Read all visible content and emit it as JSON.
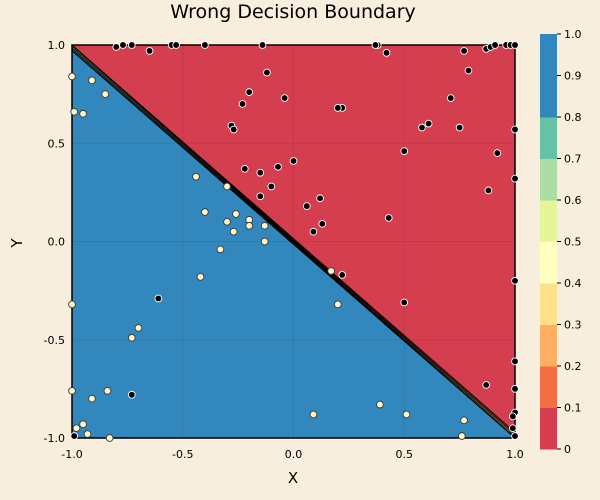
{
  "chart_data": {
    "type": "contour",
    "title": "Wrong Decision Boundary",
    "xlabel": "X",
    "ylabel": "Y",
    "xlim": [
      -1.0,
      1.0
    ],
    "ylim": [
      -1.0,
      1.0
    ],
    "x_ticks": [
      -1.0,
      -0.5,
      0.0,
      0.5,
      1.0
    ],
    "y_ticks": [
      -1.0,
      -0.5,
      0.0,
      0.5,
      1.0
    ],
    "x_tick_labels": [
      "-1.0",
      "-0.5",
      "0.0",
      "0.5",
      "1.0"
    ],
    "y_tick_labels": [
      "-1.0",
      "-0.5",
      "0.0",
      "0.5",
      "1.0"
    ],
    "grid": true,
    "boundary": "x + y = 0",
    "colorbar": {
      "min": 0,
      "max": 1,
      "ticks": [
        0,
        0.1,
        0.2,
        0.3,
        0.4,
        0.5,
        0.6,
        0.7,
        0.8,
        0.9,
        1.0
      ],
      "tick_labels": [
        "0",
        "0.1",
        "0.2",
        "0.3",
        "0.4",
        "0.5",
        "0.6",
        "0.7",
        "0.8",
        "0.9",
        "1.0"
      ],
      "colors": [
        "#d53e4f",
        "#f46d43",
        "#fdae61",
        "#fee08b",
        "#ffffbf",
        "#e6f598",
        "#abdda4",
        "#66c2a5",
        "#3288bd",
        "#3288bd"
      ]
    },
    "region_colors": {
      "high": "#3288bd",
      "low": "#d53e4f"
    },
    "series": [
      {
        "marker_color": "#000000",
        "points": [
          [
            -0.8,
            0.99
          ],
          [
            -0.77,
            1.0
          ],
          [
            -0.73,
            1.0
          ],
          [
            -0.65,
            0.97
          ],
          [
            -0.55,
            1.0
          ],
          [
            -0.53,
            1.0
          ],
          [
            -0.4,
            1.0
          ],
          [
            -0.14,
            1.0
          ],
          [
            0.38,
            1.0
          ],
          [
            0.37,
            1.0
          ],
          [
            0.42,
            0.96
          ],
          [
            0.77,
            0.97
          ],
          [
            0.87,
            0.98
          ],
          [
            0.89,
            0.99
          ],
          [
            0.91,
            1.0
          ],
          [
            0.96,
            1.0
          ],
          [
            0.98,
            1.0
          ],
          [
            1.0,
            1.0
          ],
          [
            0.79,
            0.87
          ],
          [
            -0.12,
            0.86
          ],
          [
            -0.2,
            0.76
          ],
          [
            -0.04,
            0.73
          ],
          [
            0.22,
            0.68
          ],
          [
            0.2,
            0.68
          ],
          [
            0.71,
            0.73
          ],
          [
            -0.23,
            0.7
          ],
          [
            -0.28,
            0.59
          ],
          [
            -0.27,
            0.57
          ],
          [
            0.61,
            0.6
          ],
          [
            0.58,
            0.58
          ],
          [
            0.75,
            0.58
          ],
          [
            1.0,
            0.57
          ],
          [
            0.5,
            0.46
          ],
          [
            0.92,
            0.45
          ],
          [
            0.0,
            0.41
          ],
          [
            -0.07,
            0.38
          ],
          [
            -0.22,
            0.37
          ],
          [
            -0.15,
            0.35
          ],
          [
            -0.1,
            0.28
          ],
          [
            1.0,
            0.32
          ],
          [
            0.88,
            0.26
          ],
          [
            -0.15,
            0.23
          ],
          [
            0.12,
            0.22
          ],
          [
            0.06,
            0.18
          ],
          [
            0.43,
            0.12
          ],
          [
            0.13,
            0.09
          ],
          [
            0.09,
            0.05
          ],
          [
            0.22,
            -0.17
          ],
          [
            1.0,
            -0.2
          ],
          [
            0.5,
            -0.31
          ],
          [
            -0.61,
            -0.29
          ],
          [
            1.0,
            -0.61
          ],
          [
            0.87,
            -0.73
          ],
          [
            1.0,
            -0.75
          ],
          [
            -0.73,
            -0.78
          ],
          [
            1.0,
            -0.87
          ],
          [
            0.99,
            -0.89
          ],
          [
            0.99,
            -0.95
          ],
          [
            1.0,
            -0.99
          ],
          [
            -0.99,
            -0.99
          ]
        ]
      },
      {
        "marker_color": "#fff5c9",
        "points": [
          [
            -1.0,
            0.84
          ],
          [
            -0.91,
            0.82
          ],
          [
            -0.85,
            0.75
          ],
          [
            -0.99,
            0.66
          ],
          [
            -0.95,
            0.65
          ],
          [
            -0.44,
            0.33
          ],
          [
            -0.3,
            0.28
          ],
          [
            -0.4,
            0.15
          ],
          [
            -0.26,
            0.14
          ],
          [
            -0.3,
            0.1
          ],
          [
            -0.2,
            0.11
          ],
          [
            -0.2,
            0.08
          ],
          [
            -0.27,
            0.05
          ],
          [
            -0.13,
            0.08
          ],
          [
            -0.13,
            0.0
          ],
          [
            -0.33,
            -0.04
          ],
          [
            -0.42,
            -0.18
          ],
          [
            0.17,
            -0.15
          ],
          [
            0.2,
            -0.32
          ],
          [
            -1.0,
            -0.32
          ],
          [
            -0.7,
            -0.44
          ],
          [
            -0.73,
            -0.49
          ],
          [
            -1.0,
            -0.76
          ],
          [
            -0.84,
            -0.76
          ],
          [
            -0.91,
            -0.8
          ],
          [
            0.39,
            -0.83
          ],
          [
            0.09,
            -0.88
          ],
          [
            0.51,
            -0.88
          ],
          [
            0.77,
            -0.91
          ],
          [
            -0.95,
            -0.93
          ],
          [
            -0.98,
            -0.95
          ],
          [
            -0.93,
            -0.98
          ],
          [
            -0.83,
            -1.0
          ],
          [
            0.76,
            -0.99
          ]
        ]
      }
    ]
  }
}
